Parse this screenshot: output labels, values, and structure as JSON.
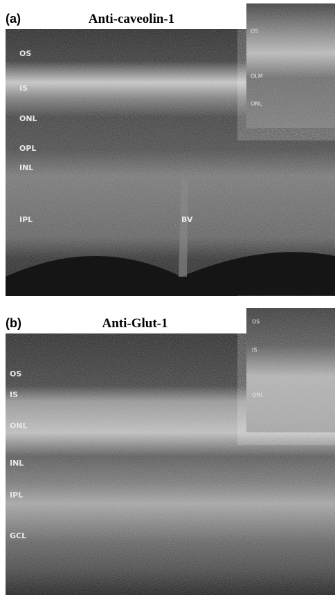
{
  "panels": [
    {
      "label": "(a)",
      "title": "Anti-caveolin-1",
      "layers": [
        "OS",
        "IS",
        "ONL",
        "OPL",
        "INL",
        "IPL",
        "BV"
      ],
      "inset_layers": [
        "OS",
        "OLM",
        "ONL"
      ]
    },
    {
      "label": "(b)",
      "title": "Anti-Glut-1",
      "layers": [
        "OS",
        "IS",
        "ONL",
        "INL",
        "IPL",
        "GCL"
      ],
      "inset_layers": [
        "OS",
        "IS",
        "ONL"
      ]
    }
  ]
}
